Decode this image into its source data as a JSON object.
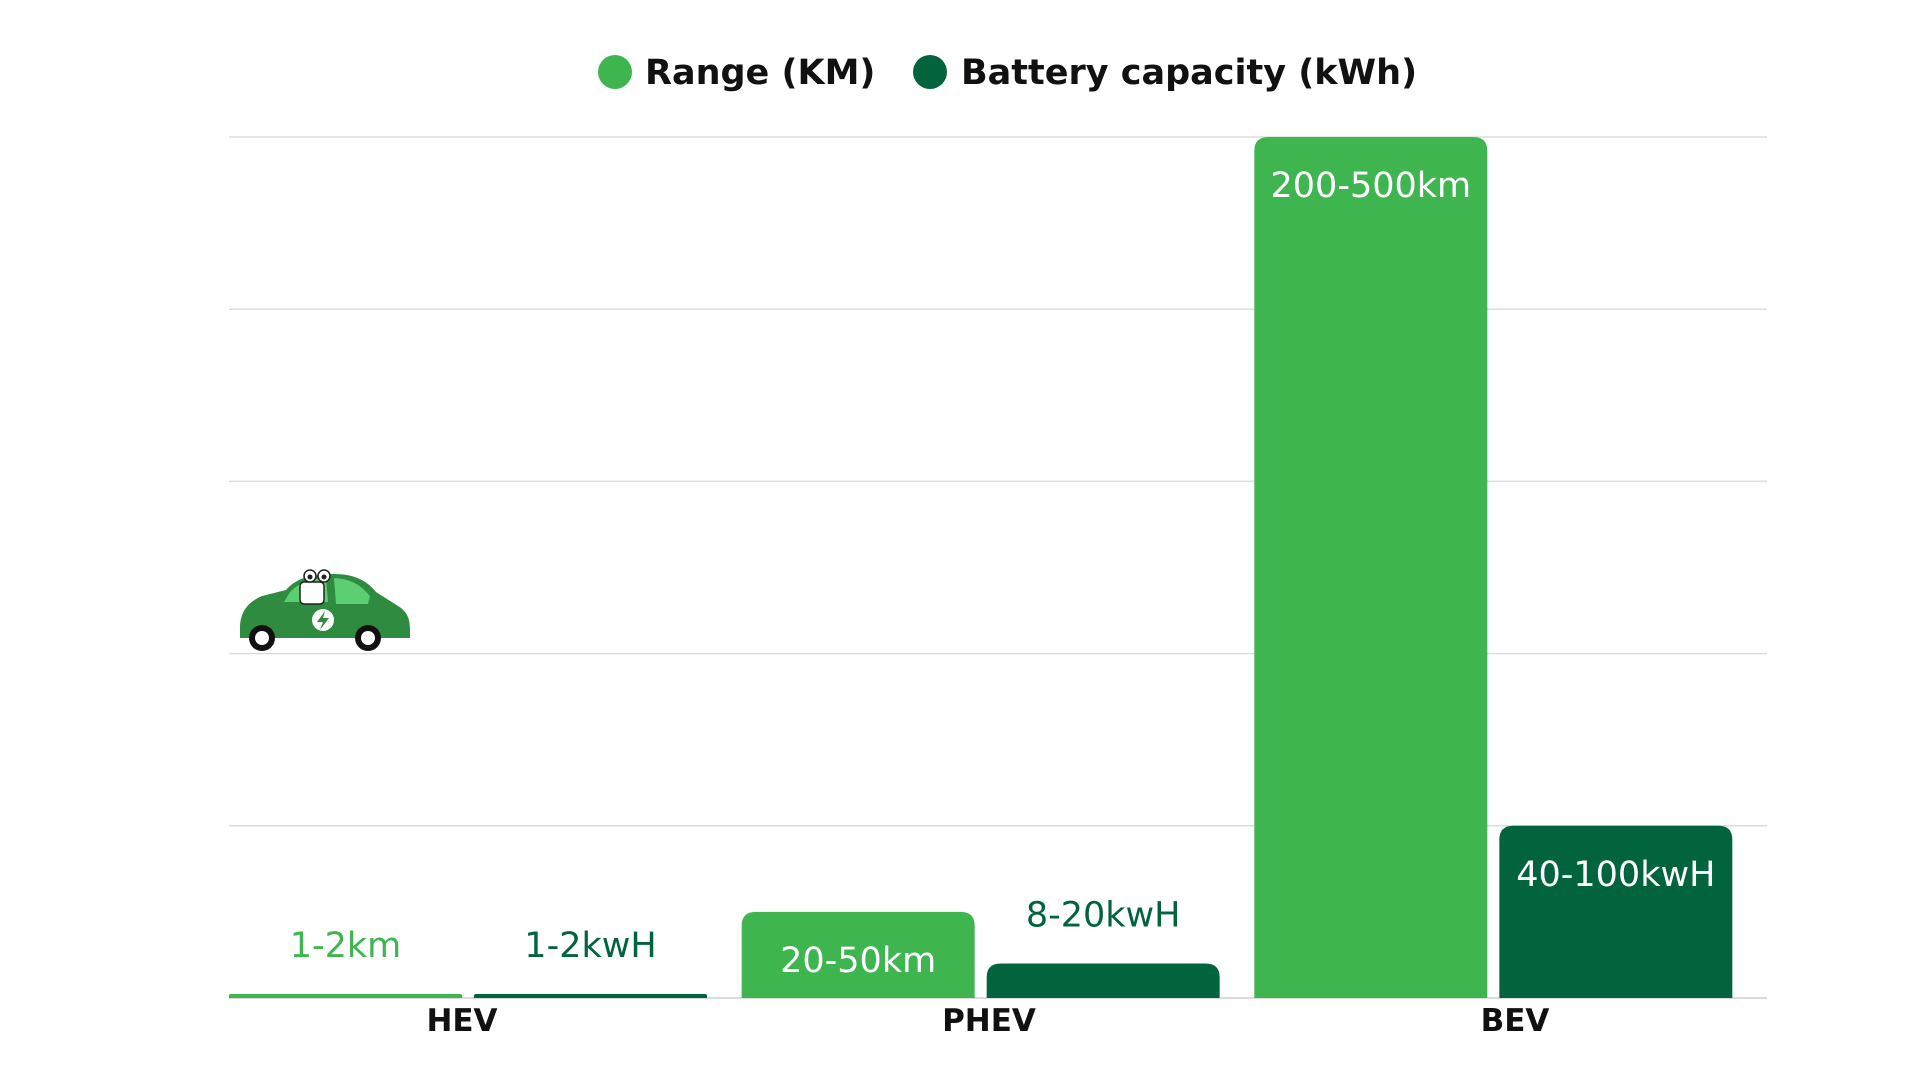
{
  "chart_data": {
    "type": "bar",
    "title": "",
    "xlabel": "",
    "ylabel": "",
    "categories": [
      "HEV",
      "PHEV",
      "BEV"
    ],
    "ylim": [
      0,
      500
    ],
    "grid": true,
    "legend_placement": "top-center",
    "series": [
      {
        "name": "Range (KM)",
        "color": "#3fb550",
        "values": [
          1,
          50,
          500
        ],
        "labels": [
          "1-2km",
          "20-50km",
          "200-500km"
        ]
      },
      {
        "name": "Battery capacity (kWh)",
        "color": "#02643d",
        "values": [
          1,
          20,
          100
        ],
        "labels": [
          "1-2kwH",
          "8-20kwH",
          "40-100kwH"
        ]
      }
    ],
    "decoration": {
      "icon": "electric-car-icon",
      "body_color": "#2e8b40"
    }
  }
}
